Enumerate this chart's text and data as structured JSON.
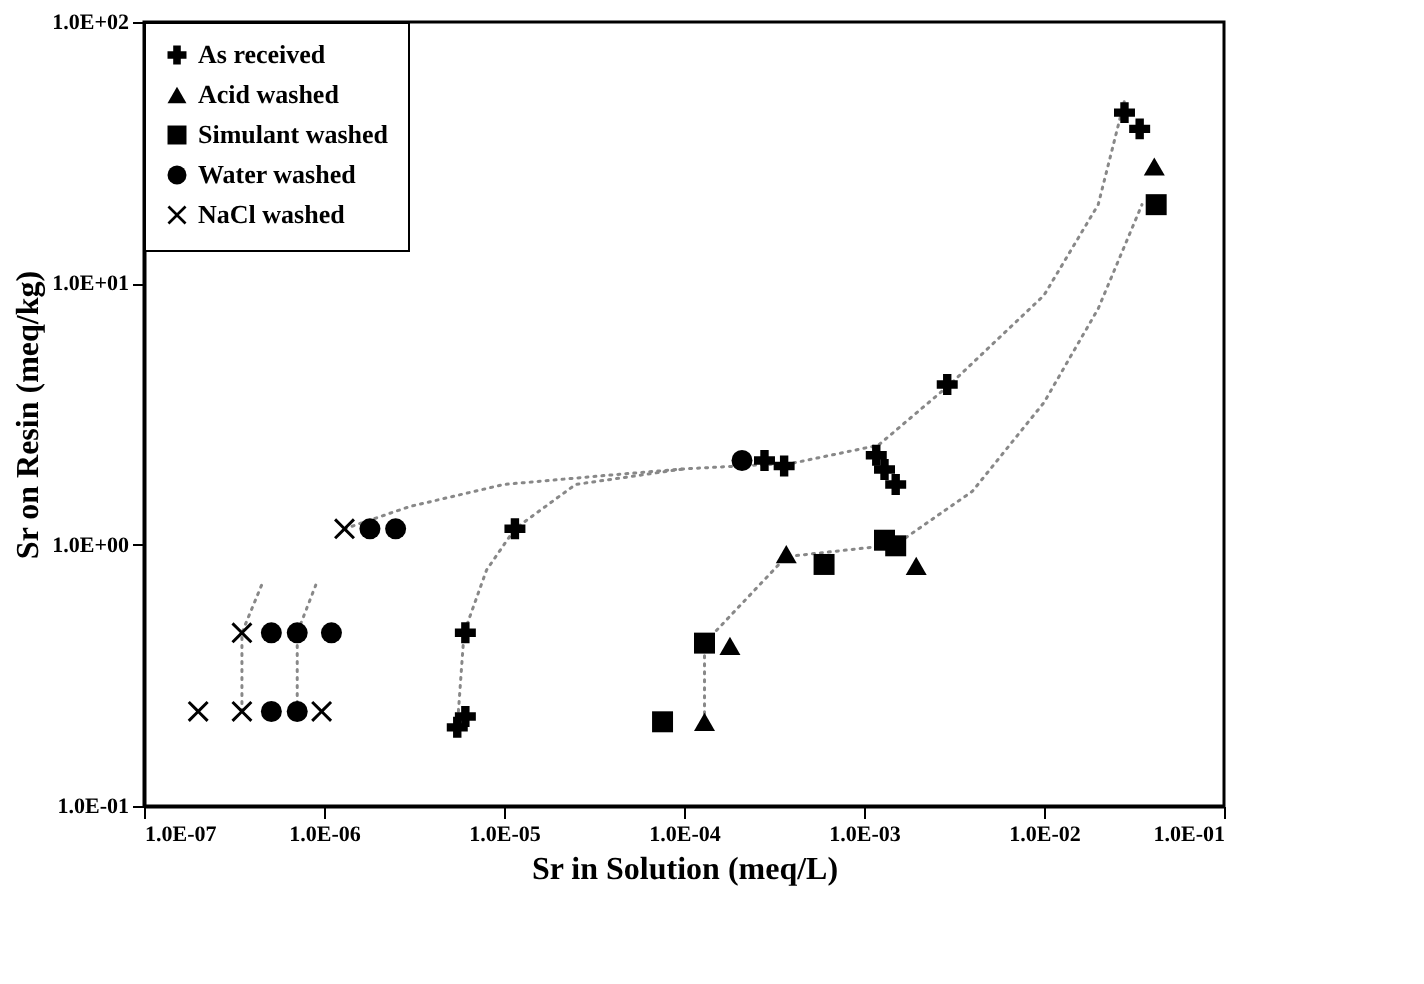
{
  "chart_data": {
    "type": "scatter",
    "xlabel": "Sr in Solution (meq/L)",
    "ylabel": "Sr on Resin (meq/kg)",
    "log": "xy",
    "grid": false,
    "legend": "top left",
    "xlim": [
      1e-07,
      0.1
    ],
    "ylim": [
      0.1,
      100
    ],
    "xticks": [
      {
        "value": 1e-07,
        "label": "1.0E-07"
      },
      {
        "value": 1e-06,
        "label": "1.0E-06"
      },
      {
        "value": 1e-05,
        "label": "1.0E-05"
      },
      {
        "value": 0.0001,
        "label": "1.0E-04"
      },
      {
        "value": 0.001,
        "label": "1.0E-03"
      },
      {
        "value": 0.01,
        "label": "1.0E-02"
      },
      {
        "value": 0.1,
        "label": "1.0E-01"
      }
    ],
    "yticks": [
      {
        "value": 0.1,
        "label": "1.0E-01"
      },
      {
        "value": 1,
        "label": "1.0E+00"
      },
      {
        "value": 10,
        "label": "1.0E+01"
      },
      {
        "value": 100,
        "label": "1.0E+02"
      }
    ],
    "series": [
      {
        "name": "As received",
        "marker": "cross",
        "color": "#000000",
        "x": [
          5.5e-06,
          6.1e-06,
          6.1e-06,
          1.15e-05,
          0.00028,
          0.00036,
          0.00117,
          0.0013,
          0.0015,
          0.0029,
          0.028,
          0.034
        ],
        "values": [
          0.2,
          0.22,
          0.46,
          1.15,
          2.1,
          2.0,
          2.2,
          1.94,
          1.7,
          4.1,
          45,
          39
        ]
      },
      {
        "name": "Acid washed",
        "marker": "triangle",
        "color": "#000000",
        "x": [
          0.00013,
          0.00018,
          0.00037,
          0.00195,
          0.041
        ],
        "values": [
          0.21,
          0.41,
          0.92,
          0.83,
          28
        ]
      },
      {
        "name": "Simulant washed",
        "marker": "square",
        "color": "#000000",
        "x": [
          7.6e-05,
          0.00013,
          0.0006,
          0.0013,
          0.0015,
          0.042
        ],
        "values": [
          0.21,
          0.42,
          0.84,
          1.04,
          0.99,
          20
        ]
      },
      {
        "name": "Water washed",
        "marker": "circle",
        "color": "#000000",
        "x": [
          5.1e-07,
          7.1e-07,
          5.1e-07,
          7.1e-07,
          1.1e-06,
          1.8e-06,
          2.5e-06,
          0.00021
        ],
        "values": [
          0.23,
          0.23,
          0.46,
          0.46,
          0.46,
          1.15,
          1.15,
          2.1
        ]
      },
      {
        "name": "NaCl washed",
        "marker": "x",
        "color": "#000000",
        "x": [
          2e-07,
          3.5e-07,
          9.7e-07,
          3.5e-07,
          1.3e-06
        ],
        "values": [
          0.23,
          0.23,
          0.23,
          0.46,
          1.15
        ]
      },
      {
        "type": "line",
        "line_style": "dotted",
        "color": "#888888",
        "x": [
          1.3e-06,
          3e-06,
          1e-05,
          4e-05,
          0.0001,
          0.0004,
          0.0012,
          0.003,
          0.01,
          0.02,
          0.028
        ],
        "values": [
          1.15,
          1.4,
          1.7,
          1.85,
          1.95,
          2.05,
          2.4,
          4.1,
          9,
          20,
          50
        ]
      },
      {
        "type": "line",
        "line_style": "dotted",
        "color": "#888888",
        "x": [
          5.5e-06,
          6e-06,
          8e-06,
          1.15e-05,
          2.5e-05,
          0.0001
        ],
        "values": [
          0.2,
          0.46,
          0.8,
          1.15,
          1.7,
          1.95
        ]
      },
      {
        "type": "line",
        "line_style": "dotted",
        "color": "#888888",
        "x": [
          0.00013,
          0.00013,
          0.00037,
          0.0015,
          0.004,
          0.01,
          0.02,
          0.035
        ],
        "values": [
          0.21,
          0.42,
          0.9,
          1.0,
          1.6,
          3.5,
          8,
          20
        ]
      },
      {
        "type": "line",
        "line_style": "dotted",
        "color": "#888888",
        "x": [
          3.5e-07,
          3.5e-07,
          4.5e-07
        ],
        "values": [
          0.23,
          0.46,
          0.7
        ]
      },
      {
        "type": "line",
        "line_style": "dotted",
        "color": "#888888",
        "x": [
          7.1e-07,
          7.1e-07,
          9e-07
        ],
        "values": [
          0.23,
          0.46,
          0.7
        ]
      }
    ]
  }
}
